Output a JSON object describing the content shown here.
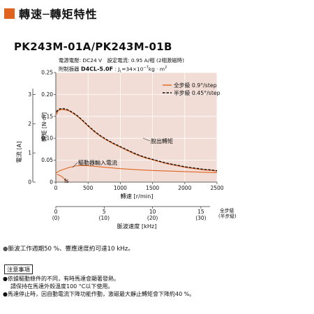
{
  "header": {
    "title": "轉速─轉矩特性",
    "accent_color": "#e0641e"
  },
  "model": "PK243M-01A/PK243M-01B",
  "conditions": {
    "line1": "電源電壓: DC24 V　設定電流: 0.95 A/相 (2相激磁時)",
    "line2_prefix": "附制振器",
    "damper": "D4CL-5.0F",
    "line2_suffix": ": J",
    "jl_sub": "L",
    "jl_value": "=34×10",
    "exp": "−7",
    "jl_unit": "kg · m",
    "unit_exp": "2"
  },
  "chart_data": {
    "type": "line",
    "x_label": "轉速",
    "x_unit": "[r/min]",
    "x_ticks": [
      0,
      500,
      1000,
      1500,
      2000,
      2500
    ],
    "xlim": [
      0,
      2500
    ],
    "torque_label": "轉矩",
    "torque_unit": "[N·m]",
    "torque_ticks": [
      0,
      0.05,
      0.1,
      0.15,
      0.2,
      0.25
    ],
    "torque_tick_labels": [
      "0",
      "0.05",
      "0.10",
      "0.15",
      "0.20",
      "0.25"
    ],
    "torque_lim": [
      0,
      0.25
    ],
    "current_label": "電流",
    "current_unit": "[A]",
    "current_ticks": [
      0,
      1,
      2,
      3
    ],
    "current_lim": [
      0,
      3.75
    ],
    "pulse_label": "脈波速度",
    "pulse_unit": "[kHz]",
    "pulse_ticks": [
      "0",
      "5",
      "10",
      "15"
    ],
    "pulse_ticks_half": [
      "(0)",
      "(10)",
      "(20)",
      "(30)"
    ],
    "full_step_label": "全步級",
    "half_step_label": "(半步級)",
    "grid": true,
    "legend_position": "top-right",
    "series": [
      {
        "name": "全步級 0.9°/step",
        "color": "#e0641e",
        "dash": "solid",
        "x": [
          10,
          30,
          60,
          100,
          150,
          200,
          260,
          330,
          400,
          500,
          600,
          700,
          800,
          900,
          1000,
          1100,
          1200,
          1300,
          1400,
          1500,
          1600,
          1700,
          1800,
          1900,
          2000,
          2100,
          2200,
          2300,
          2400,
          2500
        ],
        "y": [
          0.155,
          0.162,
          0.165,
          0.166,
          0.165,
          0.163,
          0.158,
          0.151,
          0.142,
          0.128,
          0.115,
          0.104,
          0.095,
          0.087,
          0.08,
          0.073,
          0.066,
          0.06,
          0.055,
          0.051,
          0.047,
          0.043,
          0.04,
          0.037,
          0.034,
          0.032,
          0.03,
          0.028,
          0.027,
          0.025
        ]
      },
      {
        "name": "半步級 0.45°/step",
        "color": "#111111",
        "dash": "dashed",
        "x": [
          10,
          30,
          60,
          100,
          150,
          200,
          260,
          330,
          400,
          500,
          600,
          700,
          800,
          900,
          1000,
          1100,
          1200,
          1300,
          1400,
          1500,
          1600,
          1700,
          1800,
          1900,
          2000,
          2100,
          2200,
          2300,
          2400,
          2500
        ],
        "y": [
          0.16,
          0.165,
          0.167,
          0.168,
          0.167,
          0.164,
          0.159,
          0.152,
          0.143,
          0.129,
          0.116,
          0.105,
          0.096,
          0.088,
          0.081,
          0.074,
          0.067,
          0.061,
          0.056,
          0.052,
          0.048,
          0.044,
          0.041,
          0.038,
          0.035,
          0.033,
          0.031,
          0.029,
          0.028,
          0.026
        ]
      },
      {
        "name": "驅動器輸入電流",
        "color": "#e0641e",
        "dash": "solid",
        "axis": "current",
        "x": [
          0,
          50,
          100,
          200,
          300,
          400,
          500,
          700,
          1000,
          1300,
          1600,
          2000,
          2500
        ],
        "y": [
          0.3,
          0.38,
          0.42,
          0.5,
          0.55,
          0.57,
          0.56,
          0.52,
          0.46,
          0.42,
          0.39,
          0.36,
          0.32
        ]
      },
      {
        "name": "fs",
        "color": "#e0641e",
        "dash": "solid",
        "x": [
          20,
          80,
          130,
          160,
          180
        ],
        "y": [
          0.018,
          0.014,
          0.008,
          0.003,
          0.0
        ]
      }
    ],
    "annotations": {
      "pullout": "脫出轉矩",
      "input_current": "驅動器輸入電流",
      "fs": "fs"
    }
  },
  "notes": {
    "bullet": "●",
    "pulse_note": "脈波工作週期50 %、響應速度約可達10 kHz。"
  },
  "caution": {
    "title": "注意事項",
    "items": [
      "●依據驅動條件的不同，有時馬達會顯著發熱。",
      "請保持在馬達外殼溫度100 °C以下使用。",
      "●馬達停止時，因自動電流下降功能作動，激磁最大靜止轉矩會下降約40 %。"
    ]
  }
}
